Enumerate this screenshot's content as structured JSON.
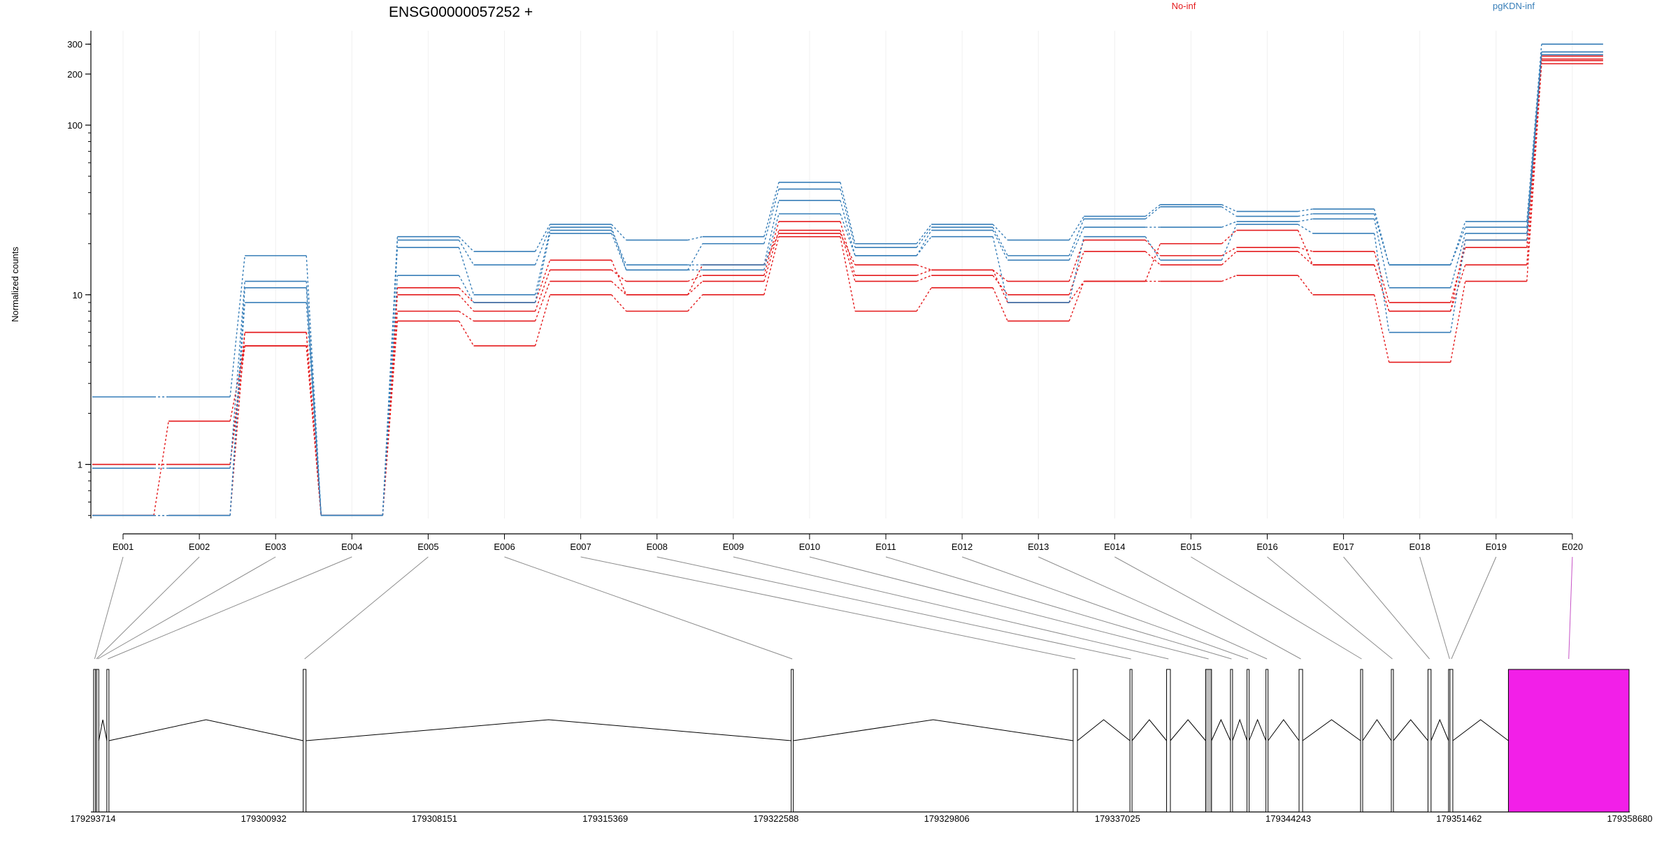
{
  "chart_data": {
    "type": "line",
    "title": "ENSG00000057252 +",
    "ylabel": "Normalized counts",
    "yscale": "log",
    "ylim": [
      0.48,
      360
    ],
    "yticks": [
      1,
      10,
      100,
      200,
      300
    ],
    "categories": [
      "E001",
      "E002",
      "E003",
      "E004",
      "E005",
      "E006",
      "E007",
      "E008",
      "E009",
      "E010",
      "E011",
      "E012",
      "E013",
      "E014",
      "E015",
      "E016",
      "E017",
      "E018",
      "E019",
      "E020"
    ],
    "groups": [
      {
        "name": "No-inf",
        "color": "#e41a1c"
      },
      {
        "name": "pgKDN-inf",
        "color": "#377eb8"
      }
    ],
    "series": [
      {
        "group": "No-inf",
        "values": [
          0.5,
          1.8,
          5.0,
          0.5,
          7.0,
          5.0,
          10.0,
          8.0,
          10.0,
          22.0,
          8.0,
          11.0,
          7.0,
          12.0,
          12.0,
          13.0,
          10.0,
          4.0,
          12.0,
          230
        ]
      },
      {
        "group": "No-inf",
        "values": [
          1.0,
          1.0,
          6.0,
          0.5,
          8.0,
          7.0,
          12.0,
          10.0,
          12.0,
          24.0,
          12.0,
          13.0,
          10.0,
          18.0,
          15.0,
          18.0,
          15.0,
          8.0,
          15.0,
          245
        ]
      },
      {
        "group": "No-inf",
        "values": [
          0.5,
          0.5,
          6.0,
          0.5,
          10.0,
          8.0,
          14.0,
          12.0,
          13.0,
          27.0,
          13.0,
          14.0,
          12.0,
          21.0,
          17.0,
          19.0,
          18.0,
          9.0,
          19.0,
          255
        ]
      },
      {
        "group": "No-inf",
        "values": [
          1.0,
          1.0,
          5.0,
          0.5,
          11.0,
          9.0,
          16.0,
          10.0,
          15.0,
          23.0,
          15.0,
          14.0,
          9.0,
          12.0,
          20.0,
          24.0,
          15.0,
          8.0,
          21.0,
          240
        ]
      },
      {
        "group": "pgKDN-inf",
        "values": [
          2.5,
          2.5,
          17.0,
          0.5,
          22.0,
          18.0,
          26.0,
          21.0,
          22.0,
          46.0,
          20.0,
          26.0,
          21.0,
          29.0,
          34.0,
          31.0,
          32.0,
          15.0,
          27.0,
          300
        ]
      },
      {
        "group": "pgKDN-inf",
        "values": [
          0.95,
          0.95,
          12.0,
          0.5,
          21.0,
          15.0,
          25.0,
          14.0,
          20.0,
          42.0,
          19.0,
          25.0,
          17.0,
          28.0,
          33.0,
          29.0,
          30.0,
          15.0,
          25.0,
          270
        ]
      },
      {
        "group": "pgKDN-inf",
        "values": [
          0.5,
          0.5,
          11.0,
          0.5,
          19.0,
          10.0,
          24.0,
          15.0,
          15.0,
          36.0,
          17.0,
          24.0,
          16.0,
          25.0,
          25.0,
          27.0,
          28.0,
          11.0,
          23.0,
          270
        ]
      },
      {
        "group": "pgKDN-inf",
        "values": [
          0.5,
          0.5,
          9.0,
          0.5,
          13.0,
          9.0,
          23.0,
          14.0,
          14.0,
          30.0,
          17.0,
          22.0,
          9.0,
          22.0,
          16.0,
          26.0,
          23.0,
          6.0,
          21.0,
          260
        ]
      }
    ],
    "gene_model": {
      "coord_ticks": [
        "179293714",
        "179300932",
        "179308151",
        "179315369",
        "179322588",
        "179329806",
        "179337025",
        "179344243",
        "179351462",
        "179358680"
      ],
      "coord_tick_values": [
        179293714,
        179300932,
        179308151,
        179315369,
        179322588,
        179329806,
        179337025,
        179344243,
        179351462,
        179358680
      ],
      "exons": [
        {
          "id": "E001",
          "start": 179293740,
          "end": 179293800,
          "tested": true
        },
        {
          "id": "E002",
          "start": 179293815,
          "end": 179293860,
          "tested": true
        },
        {
          "id": "E003",
          "start": 179293870,
          "end": 179293920,
          "tested": true
        },
        {
          "id": "E004",
          "start": 179294300,
          "end": 179294360,
          "tested": true
        },
        {
          "id": "E005",
          "start": 179302600,
          "end": 179302720,
          "tested": true
        },
        {
          "id": "E006",
          "start": 179323230,
          "end": 179323300,
          "tested": true
        },
        {
          "id": "E007",
          "start": 179335150,
          "end": 179335330,
          "tested": true
        },
        {
          "id": "E008",
          "start": 179337550,
          "end": 179337620,
          "tested": true
        },
        {
          "id": "E009",
          "start": 179339100,
          "end": 179339260,
          "tested": true
        },
        {
          "id": "E010",
          "start": 179340750,
          "end": 179341000,
          "tested": true
        },
        {
          "id": "E011",
          "start": 179341800,
          "end": 179341880,
          "tested": true
        },
        {
          "id": "E012",
          "start": 179342500,
          "end": 179342580,
          "tested": true
        },
        {
          "id": "E013",
          "start": 179343300,
          "end": 179343380,
          "tested": true
        },
        {
          "id": "E014",
          "start": 179344700,
          "end": 179344850,
          "tested": true
        },
        {
          "id": "E015",
          "start": 179347300,
          "end": 179347380,
          "tested": true
        },
        {
          "id": "E016",
          "start": 179348600,
          "end": 179348680,
          "tested": true
        },
        {
          "id": "E017",
          "start": 179350150,
          "end": 179350280,
          "tested": true
        },
        {
          "id": "E018",
          "start": 179351020,
          "end": 179351060,
          "tested": true
        },
        {
          "id": "E019",
          "start": 179351080,
          "end": 179351200,
          "tested": true
        },
        {
          "id": "E020",
          "start": 179353550,
          "end": 179358650,
          "tested": true,
          "significant": true
        }
      ],
      "highlight_color": "#f21fe8",
      "exon_fill": "#ffffff",
      "wide_exon_fill": "#bdbdbd"
    }
  }
}
